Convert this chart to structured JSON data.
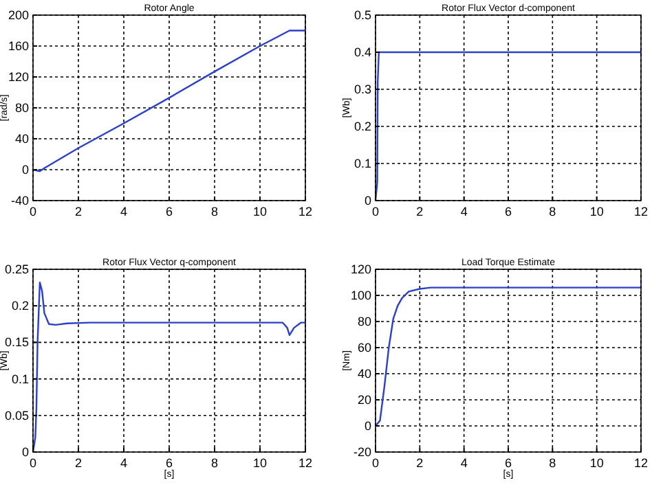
{
  "chart_data": [
    {
      "type": "line",
      "title": "Rotor Angle",
      "ylabel": "[rad/s]",
      "x": [
        0,
        0.3,
        0.5,
        2,
        4,
        6,
        8,
        10,
        11.3,
        12
      ],
      "series": [
        {
          "color": "#2b3fc9",
          "values": [
            0,
            -2,
            2,
            28,
            60,
            93,
            127,
            160,
            180,
            180
          ]
        }
      ],
      "xlim": [
        0,
        12
      ],
      "ylim": [
        -40,
        200
      ],
      "xticks": [
        0,
        2,
        4,
        6,
        8,
        10,
        12
      ],
      "yticks": [
        -40,
        0,
        40,
        80,
        120,
        160,
        200
      ],
      "grid": true
    },
    {
      "type": "line",
      "title": "Rotor Flux Vector d-component",
      "ylabel": "[Wb]",
      "x": [
        0,
        0.08,
        0.1,
        0.15,
        12
      ],
      "series": [
        {
          "color": "#2b3fc9",
          "values": [
            0,
            0.05,
            0.32,
            0.4,
            0.4
          ]
        }
      ],
      "xlim": [
        0,
        12
      ],
      "ylim": [
        0,
        0.5
      ],
      "xticks": [
        0,
        2,
        4,
        6,
        8,
        10,
        12
      ],
      "yticks": [
        0,
        0.1,
        0.2,
        0.3,
        0.4,
        0.5
      ],
      "grid": true
    },
    {
      "type": "line",
      "title": "Rotor Flux Vector q-component",
      "ylabel": "[Wb]",
      "xlabel": "[s]",
      "x": [
        0,
        0.1,
        0.15,
        0.2,
        0.3,
        0.4,
        0.5,
        0.7,
        1,
        1.5,
        2.5,
        11,
        11.2,
        11.3,
        11.5,
        11.8,
        12
      ],
      "series": [
        {
          "color": "#2b3fc9",
          "values": [
            0,
            0.02,
            0.06,
            0.15,
            0.232,
            0.22,
            0.19,
            0.175,
            0.174,
            0.176,
            0.177,
            0.177,
            0.17,
            0.16,
            0.17,
            0.177,
            0.177
          ]
        }
      ],
      "xlim": [
        0,
        12
      ],
      "ylim": [
        0,
        0.25
      ],
      "xticks": [
        0,
        2,
        4,
        6,
        8,
        10,
        12
      ],
      "yticks": [
        0,
        0.05,
        0.1,
        0.15,
        0.2,
        0.25
      ],
      "grid": true
    },
    {
      "type": "line",
      "title": "Load Torque Estimate",
      "ylabel": "[Nm]",
      "xlabel": "[s]",
      "x": [
        0,
        0.2,
        0.4,
        0.6,
        0.8,
        1,
        1.2,
        1.5,
        2,
        2.5,
        12
      ],
      "series": [
        {
          "color": "#2b3fc9",
          "values": [
            0,
            4,
            30,
            60,
            82,
            92,
            98,
            103,
            105,
            106,
            106
          ]
        }
      ],
      "xlim": [
        0,
        12
      ],
      "ylim": [
        -20,
        120
      ],
      "xticks": [
        0,
        2,
        4,
        6,
        8,
        10,
        12
      ],
      "yticks": [
        -20,
        0,
        20,
        40,
        60,
        80,
        100,
        120
      ],
      "grid": true
    }
  ]
}
